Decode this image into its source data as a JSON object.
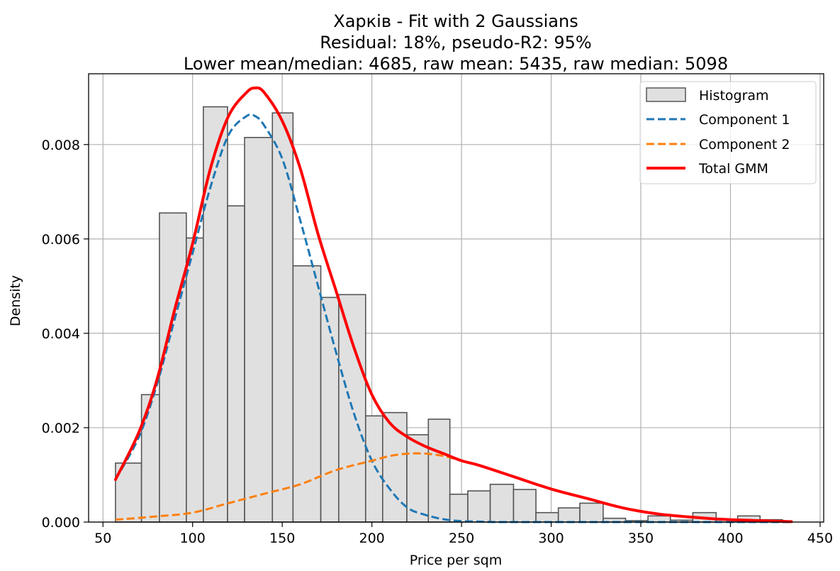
{
  "chart_data": {
    "type": "histogram",
    "title": "Харків - Fit with 2 Gaussians",
    "subtitle_lines": [
      "Residual: 18%, pseudo-R2: 95%",
      "Lower mean/median: 4685, raw mean: 5435, raw median: 5098"
    ],
    "xlabel": "Price per sqm",
    "ylabel": "Density",
    "xlim": [
      42,
      452
    ],
    "ylim": [
      0,
      0.0095
    ],
    "grid": true,
    "x_ticks": [
      50,
      100,
      150,
      200,
      250,
      300,
      350,
      400,
      450
    ],
    "y_ticks": [
      0.0,
      0.002,
      0.004,
      0.006,
      0.008
    ],
    "y_tick_labels": [
      "0.000",
      "0.002",
      "0.004",
      "0.006",
      "0.008"
    ],
    "legend_position": "top-right",
    "histogram": {
      "name": "Histogram",
      "bin_edges": [
        57,
        71.5,
        81.5,
        96.5,
        106,
        119.5,
        129,
        144.5,
        156,
        171.5,
        181.5,
        196.5,
        206,
        219.5,
        231.5,
        243.5,
        253.5,
        266,
        279,
        291.5,
        304,
        316,
        329,
        341.5,
        354,
        366.5,
        379,
        392,
        404,
        416.5,
        429,
        434
      ],
      "values": [
        0.00125,
        0.0027,
        0.00655,
        0.00602,
        0.0088,
        0.0067,
        0.00815,
        0.00867,
        0.00543,
        0.00476,
        0.00482,
        0.00225,
        0.00232,
        0.00185,
        0.00218,
        0.00059,
        0.00066,
        0.0008,
        0.00069,
        0.0002,
        0.0003,
        0.0004,
        8e-05,
        3e-05,
        0.00013,
        4e-05,
        0.0002,
        5e-05,
        0.00013,
        5e-05,
        0.0
      ],
      "fill": "#e0e0e0",
      "edge": "#555555"
    },
    "series": [
      {
        "name": "Component 1",
        "style": "dashed",
        "color": "#1f77b4",
        "x": [
          57,
          70,
          80,
          90,
          100,
          110,
          120,
          130,
          135,
          140,
          150,
          160,
          170,
          180,
          190,
          200,
          210,
          220,
          230,
          240,
          250,
          260,
          270,
          300,
          350,
          400,
          434
        ],
        "y": [
          0.0009,
          0.0018,
          0.0029,
          0.0043,
          0.0057,
          0.0071,
          0.0082,
          0.0086,
          0.0086,
          0.0084,
          0.0077,
          0.0064,
          0.005,
          0.0036,
          0.0023,
          0.0013,
          0.0007,
          0.0003,
          0.00015,
          6e-05,
          2e-05,
          1e-05,
          0.0,
          0.0,
          0.0,
          0.0,
          0.0
        ]
      },
      {
        "name": "Component 2",
        "style": "dashed",
        "color": "#ff7f0e",
        "x": [
          57,
          80,
          100,
          120,
          140,
          160,
          180,
          200,
          210,
          220,
          230,
          240,
          250,
          260,
          280,
          300,
          320,
          340,
          360,
          380,
          400,
          434
        ],
        "y": [
          5e-05,
          0.00012,
          0.0002,
          0.0004,
          0.0006,
          0.0008,
          0.0011,
          0.0013,
          0.0014,
          0.00145,
          0.00145,
          0.0014,
          0.0013,
          0.0012,
          0.00095,
          0.0007,
          0.0005,
          0.0003,
          0.00017,
          0.0001,
          5e-05,
          1e-05
        ]
      },
      {
        "name": "Total GMM",
        "style": "solid",
        "color": "#ff0000",
        "x": [
          57,
          70,
          80,
          90,
          100,
          110,
          120,
          130,
          135,
          140,
          150,
          160,
          170,
          180,
          190,
          200,
          210,
          220,
          230,
          240,
          250,
          260,
          280,
          300,
          320,
          340,
          360,
          380,
          400,
          434
        ],
        "y": [
          0.0009,
          0.0019,
          0.003,
          0.0045,
          0.0059,
          0.0075,
          0.0086,
          0.0091,
          0.0092,
          0.0091,
          0.0085,
          0.0075,
          0.0061,
          0.0049,
          0.0037,
          0.0027,
          0.0021,
          0.0018,
          0.0016,
          0.00145,
          0.0013,
          0.0012,
          0.00095,
          0.0007,
          0.0005,
          0.0003,
          0.00017,
          0.0001,
          5e-05,
          1e-05
        ]
      }
    ]
  }
}
